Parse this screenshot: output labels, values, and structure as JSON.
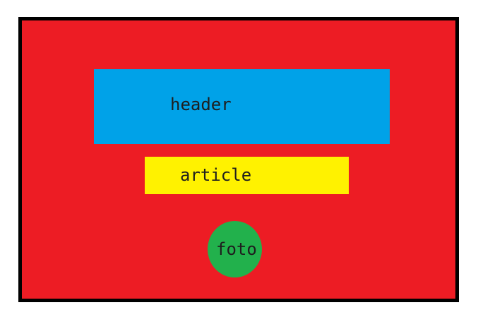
{
  "diagram": {
    "colors": {
      "frame_border": "#000000",
      "frame_fill": "#ed1c24",
      "header_fill": "#00a2e8",
      "article_fill": "#fff200",
      "foto_fill": "#22b14c",
      "label_text": "#1e1e1e"
    },
    "header": {
      "label": "header"
    },
    "article": {
      "label": "article"
    },
    "foto": {
      "label": "foto",
      "shape": "circle"
    }
  }
}
